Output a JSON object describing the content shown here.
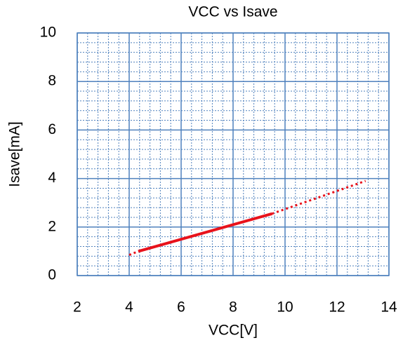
{
  "chart_data": {
    "type": "line",
    "title": "VCC vs Isave",
    "xlabel": "VCC[V]",
    "ylabel": "Isave[mA]",
    "xlim": [
      2,
      14
    ],
    "ylim": [
      0,
      10
    ],
    "xticks": [
      2,
      4,
      6,
      8,
      10,
      12,
      14
    ],
    "yticks": [
      0,
      2,
      4,
      6,
      8,
      10
    ],
    "grid": true,
    "xminor": 5,
    "yminor": 5,
    "series": [
      {
        "color": "#e8121b",
        "style": "dotted",
        "x": [
          4,
          4.35
        ],
        "values": [
          0.85,
          1.0
        ]
      },
      {
        "color": "#e8121b",
        "style": "solid",
        "x": [
          4.35,
          9.5
        ],
        "values": [
          1.0,
          2.55
        ]
      },
      {
        "color": "#e8121b",
        "style": "dotted",
        "x": [
          9.5,
          13.1
        ],
        "values": [
          2.55,
          3.9
        ]
      }
    ]
  }
}
